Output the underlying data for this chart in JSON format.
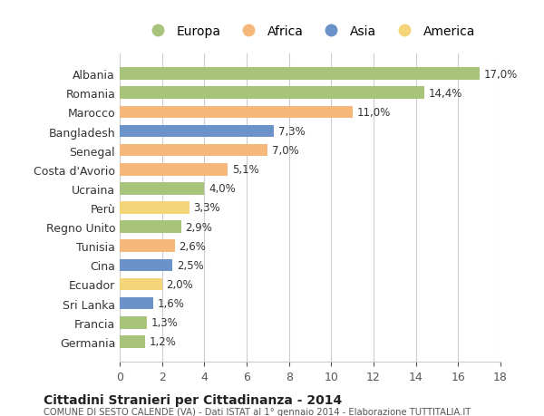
{
  "countries": [
    "Albania",
    "Romania",
    "Marocco",
    "Bangladesh",
    "Senegal",
    "Costa d'Avorio",
    "Ucraina",
    "Perù",
    "Regno Unito",
    "Tunisia",
    "Cina",
    "Ecuador",
    "Sri Lanka",
    "Francia",
    "Germania"
  ],
  "values": [
    17.0,
    14.4,
    11.0,
    7.3,
    7.0,
    5.1,
    4.0,
    3.3,
    2.9,
    2.6,
    2.5,
    2.0,
    1.6,
    1.3,
    1.2
  ],
  "labels": [
    "17,0%",
    "14,4%",
    "11,0%",
    "7,3%",
    "7,0%",
    "5,1%",
    "4,0%",
    "3,3%",
    "2,9%",
    "2,6%",
    "2,5%",
    "2,0%",
    "1,6%",
    "1,3%",
    "1,2%"
  ],
  "continent": [
    "Europa",
    "Europa",
    "Africa",
    "Asia",
    "Africa",
    "Africa",
    "Europa",
    "America",
    "Europa",
    "Africa",
    "Asia",
    "America",
    "Asia",
    "Europa",
    "Europa"
  ],
  "colors": {
    "Europa": "#a8c47a",
    "Africa": "#f5b87a",
    "Asia": "#6b93c9",
    "America": "#f5d57a"
  },
  "legend_order": [
    "Europa",
    "Africa",
    "Asia",
    "America"
  ],
  "title": "Cittadini Stranieri per Cittadinanza - 2014",
  "subtitle": "COMUNE DI SESTO CALENDE (VA) - Dati ISTAT al 1° gennaio 2014 - Elaborazione TUTTITALIA.IT",
  "xlim": [
    0,
    18
  ],
  "xticks": [
    0,
    2,
    4,
    6,
    8,
    10,
    12,
    14,
    16,
    18
  ],
  "background_color": "#ffffff",
  "grid_color": "#cccccc",
  "bar_height": 0.65
}
